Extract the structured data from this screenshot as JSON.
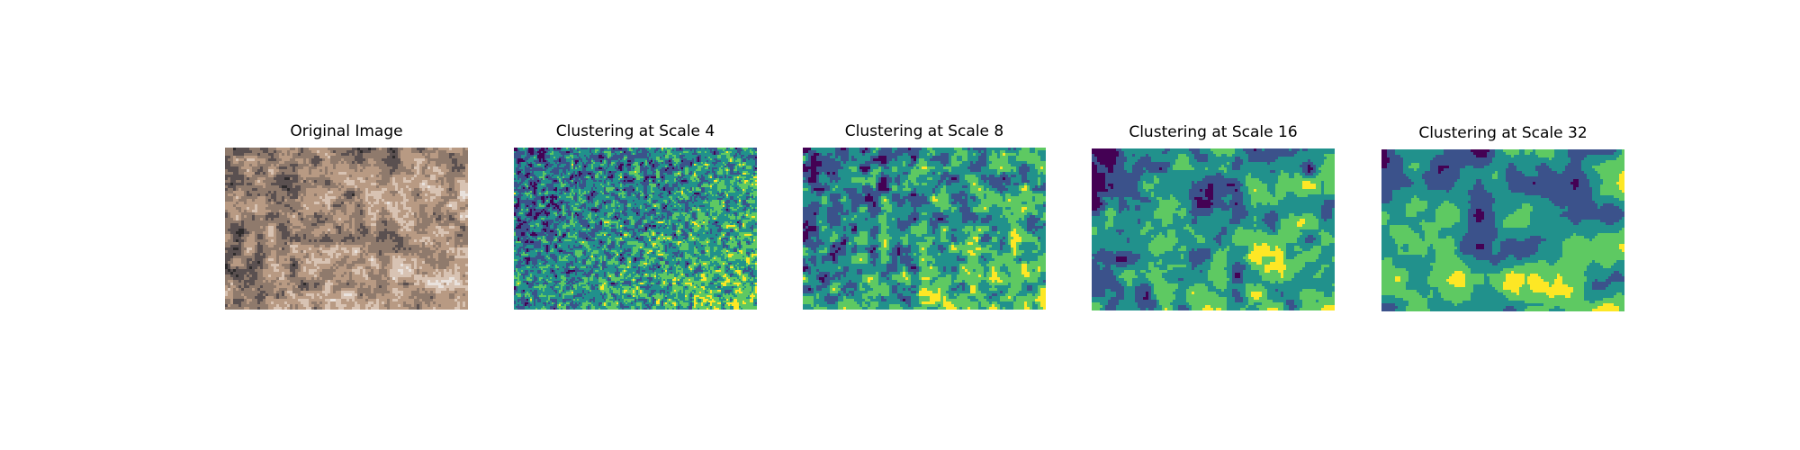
{
  "figure": {
    "panels": [
      {
        "title": "Original Image",
        "kind": "photo"
      },
      {
        "title": "Clustering at Scale 4",
        "kind": "cluster",
        "scale": 4
      },
      {
        "title": "Clustering at Scale 8",
        "kind": "cluster",
        "scale": 8
      },
      {
        "title": "Clustering at Scale 16",
        "kind": "cluster",
        "scale": 16
      },
      {
        "title": "Clustering at Scale 32",
        "kind": "cluster",
        "scale": 32
      }
    ],
    "cluster_palette": [
      "#440154",
      "#3b528b",
      "#21918c",
      "#5ec962",
      "#fde725"
    ],
    "photo_palette": [
      "#2e2b2c",
      "#5a5050",
      "#8f7a6c",
      "#b89a83",
      "#d8c3b3",
      "#e9e2dd"
    ]
  }
}
